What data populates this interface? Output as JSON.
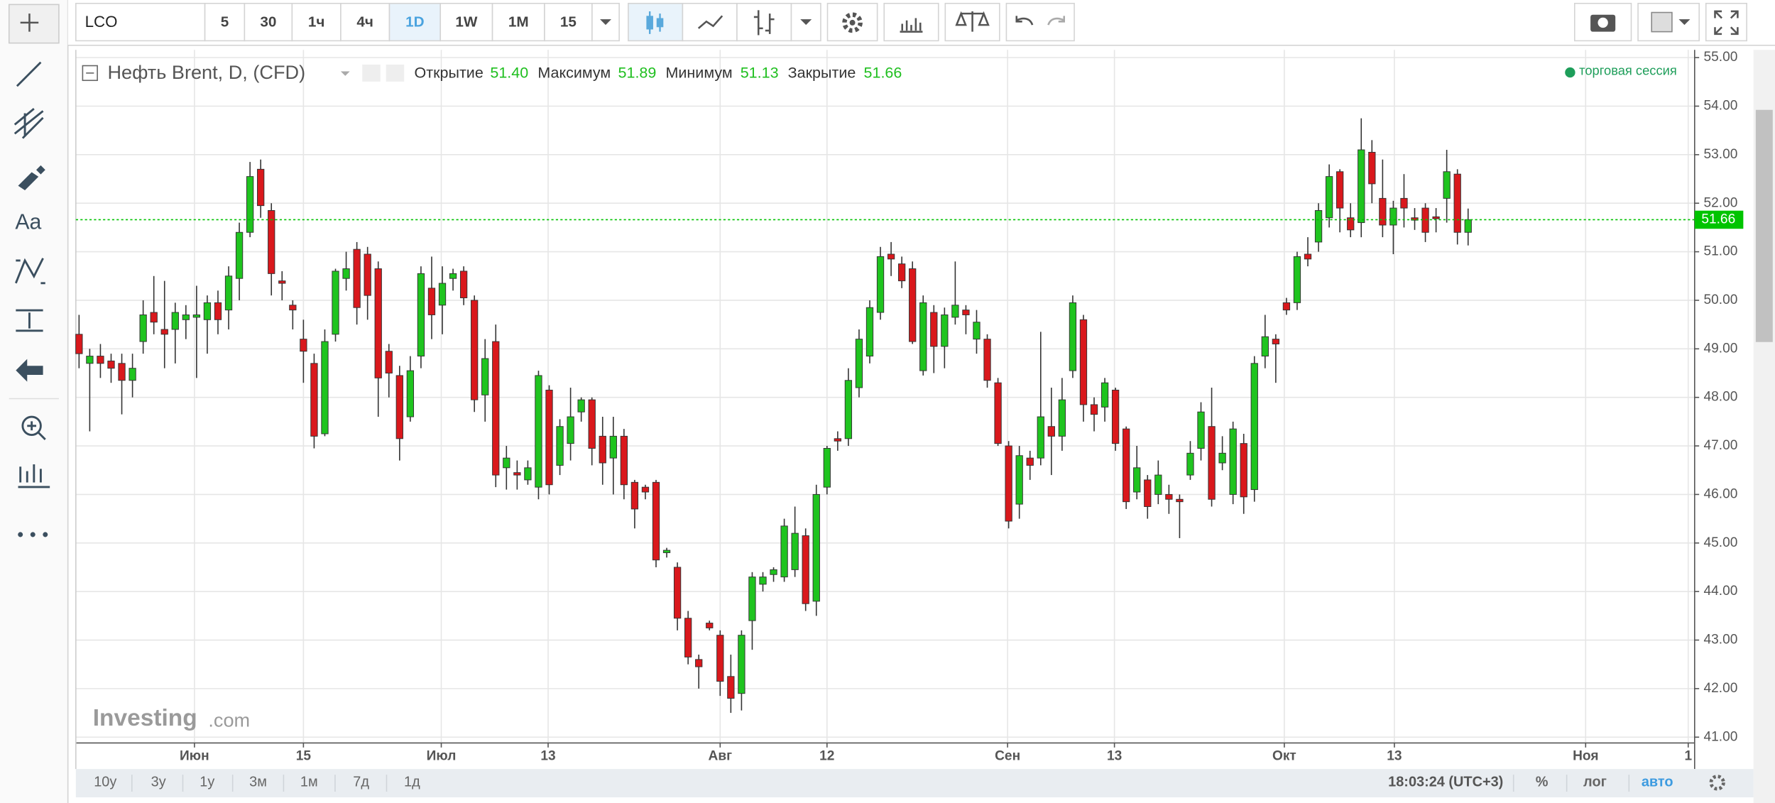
{
  "toolbar": {
    "symbol": "LCO",
    "intervals": [
      "5",
      "30",
      "1ч",
      "4ч",
      "1D",
      "1W",
      "1M",
      "15"
    ],
    "active_interval": 4
  },
  "left_panel": {
    "text_tool": "Aa"
  },
  "legend": {
    "title": "Нефть Brent, D, (CFD)",
    "fields": [
      {
        "label": "Открытие",
        "value": "51.40"
      },
      {
        "label": "Максимум",
        "value": "51.89"
      },
      {
        "label": "Минимум",
        "value": "51.13"
      },
      {
        "label": "Закрытие",
        "value": "51.66"
      }
    ],
    "session": "торговая сессия"
  },
  "watermark": {
    "brand": "Investing",
    "suffix": ".com"
  },
  "bottom_bar": {
    "ranges": [
      "10y",
      "3y",
      "1y",
      "3м",
      "1м",
      "7д",
      "1д"
    ],
    "time": "18:03:24 (UTC+3)",
    "options": [
      "%",
      "лог",
      "авто"
    ],
    "active_option": 2
  },
  "chart_data": {
    "type": "candlestick",
    "up_color": "#1fc41f",
    "down_color": "#d9181c",
    "grid": true,
    "open": [
      49.3,
      48.7,
      48.85,
      48.75,
      48.7,
      48.35,
      49.15,
      49.75,
      49.4,
      49.4,
      49.6,
      49.65,
      49.6,
      49.95,
      49.8,
      50.45,
      51.4,
      52.7,
      51.85,
      50.4,
      49.9,
      49.2,
      48.7,
      47.25,
      49.3,
      50.45,
      51.05,
      50.95,
      50.65,
      48.95,
      48.45,
      47.6,
      48.85,
      50.25,
      49.9,
      50.45,
      50.6,
      50.0,
      48.05,
      49.15,
      46.55,
      46.45,
      46.3,
      46.15,
      48.15,
      46.6,
      47.05,
      47.7,
      47.95,
      47.2,
      46.75,
      47.2,
      46.25,
      46.15,
      46.25,
      44.8,
      44.5,
      43.45,
      42.6,
      43.35,
      43.1,
      42.25,
      41.9,
      43.4,
      44.15,
      44.35,
      44.3,
      44.45,
      45.15,
      43.8,
      46.15,
      47.15,
      47.15,
      48.2,
      48.85,
      49.75,
      50.95,
      50.75,
      50.65,
      48.55,
      49.75,
      49.05,
      49.65,
      49.8,
      49.2,
      49.2,
      48.3,
      47.0,
      45.8,
      46.75,
      46.75,
      47.4,
      47.2,
      48.55,
      49.6,
      47.85,
      47.8,
      48.15,
      47.35,
      46.05,
      46.3,
      46.0,
      46.0,
      45.9,
      46.4,
      46.95,
      47.4,
      46.65,
      46.0,
      47.05,
      46.1,
      48.85,
      49.2,
      49.95,
      49.95,
      50.95,
      51.2,
      51.7,
      52.65,
      51.7,
      51.6,
      53.05,
      52.1,
      51.55,
      52.1,
      51.7,
      51.9,
      51.72,
      52.1,
      52.6,
      51.4
    ],
    "high": [
      49.7,
      49.0,
      49.1,
      48.9,
      48.9,
      48.9,
      50.0,
      50.5,
      50.4,
      49.95,
      49.9,
      50.3,
      50.1,
      50.2,
      50.7,
      51.6,
      52.85,
      52.9,
      52.0,
      50.6,
      50.0,
      49.6,
      48.9,
      49.4,
      50.65,
      51.0,
      51.2,
      51.1,
      50.8,
      49.1,
      48.65,
      48.85,
      50.7,
      50.9,
      50.7,
      50.65,
      50.7,
      50.1,
      49.2,
      49.5,
      47.0,
      46.7,
      46.7,
      48.55,
      48.25,
      47.55,
      48.2,
      48.0,
      48.0,
      47.6,
      47.6,
      47.35,
      46.3,
      46.2,
      46.3,
      44.9,
      44.6,
      43.6,
      42.7,
      43.4,
      43.2,
      42.7,
      43.2,
      44.4,
      44.4,
      44.5,
      45.5,
      45.75,
      45.3,
      46.2,
      47.0,
      47.3,
      48.6,
      49.4,
      50.0,
      51.1,
      51.2,
      50.9,
      50.8,
      50.1,
      49.9,
      49.85,
      50.8,
      49.9,
      49.8,
      49.3,
      48.4,
      47.1,
      47.0,
      46.9,
      49.35,
      48.2,
      48.4,
      50.1,
      49.7,
      48.0,
      48.4,
      48.2,
      47.4,
      47.0,
      46.4,
      46.7,
      46.2,
      46.0,
      47.1,
      47.9,
      48.2,
      47.2,
      47.5,
      47.25,
      48.85,
      49.7,
      49.3,
      50.05,
      51.0,
      51.3,
      52.0,
      52.8,
      52.7,
      52.0,
      53.75,
      53.3,
      52.9,
      52.05,
      52.6,
      51.9,
      52.0,
      51.9,
      53.1,
      52.7,
      51.89
    ],
    "low": [
      48.6,
      47.3,
      48.4,
      48.3,
      47.65,
      48.0,
      48.9,
      49.3,
      48.6,
      48.7,
      49.2,
      48.4,
      48.9,
      49.3,
      49.4,
      50.0,
      51.3,
      51.7,
      50.1,
      50.0,
      49.4,
      48.3,
      46.95,
      47.2,
      49.15,
      50.2,
      49.5,
      49.6,
      47.6,
      48.0,
      46.7,
      47.5,
      48.6,
      49.2,
      49.3,
      50.2,
      49.9,
      47.7,
      47.5,
      46.15,
      46.1,
      46.1,
      46.2,
      45.9,
      46.0,
      46.4,
      46.7,
      47.5,
      46.6,
      46.2,
      46.0,
      45.9,
      45.3,
      45.9,
      44.5,
      44.7,
      43.2,
      42.5,
      42.0,
      43.2,
      41.85,
      41.5,
      41.55,
      42.8,
      44.0,
      44.2,
      44.2,
      44.3,
      43.6,
      43.5,
      46.0,
      46.9,
      47.0,
      48.0,
      48.7,
      49.6,
      50.5,
      50.25,
      49.1,
      48.45,
      48.5,
      48.6,
      49.5,
      49.3,
      48.9,
      48.2,
      47.0,
      45.3,
      45.5,
      46.3,
      46.6,
      46.4,
      46.9,
      48.4,
      47.5,
      47.3,
      47.5,
      46.9,
      45.7,
      45.9,
      45.5,
      45.8,
      45.6,
      45.1,
      46.3,
      46.7,
      45.75,
      46.5,
      45.8,
      45.6,
      45.85,
      48.6,
      48.3,
      49.7,
      49.8,
      50.7,
      51.0,
      51.5,
      51.4,
      51.3,
      51.3,
      52.0,
      51.3,
      50.95,
      51.5,
      51.45,
      51.2,
      51.4,
      51.6,
      51.15,
      51.13
    ],
    "close": [
      48.9,
      48.85,
      48.7,
      48.6,
      48.35,
      48.6,
      49.7,
      49.55,
      49.3,
      49.75,
      49.7,
      49.7,
      49.95,
      49.6,
      50.5,
      51.4,
      52.55,
      51.95,
      50.55,
      50.35,
      49.8,
      48.95,
      47.2,
      49.15,
      50.6,
      50.65,
      49.85,
      50.1,
      48.4,
      48.5,
      47.15,
      48.55,
      50.55,
      49.7,
      50.35,
      50.55,
      50.05,
      47.95,
      48.8,
      46.4,
      46.75,
      46.4,
      46.55,
      48.45,
      46.2,
      47.4,
      47.6,
      47.95,
      46.95,
      46.65,
      47.2,
      46.2,
      45.7,
      46.05,
      44.65,
      44.85,
      43.45,
      42.65,
      42.45,
      43.25,
      42.15,
      41.8,
      43.1,
      44.3,
      44.3,
      44.45,
      45.35,
      45.2,
      43.75,
      46.0,
      46.95,
      47.1,
      48.35,
      49.2,
      49.85,
      50.9,
      50.85,
      50.4,
      49.15,
      49.95,
      49.05,
      49.7,
      49.9,
      49.7,
      49.55,
      48.35,
      47.05,
      45.45,
      46.8,
      46.6,
      47.6,
      47.2,
      47.95,
      49.95,
      47.85,
      47.65,
      48.3,
      47.05,
      45.85,
      46.55,
      45.75,
      46.4,
      45.9,
      45.85,
      46.85,
      47.7,
      45.9,
      46.85,
      47.35,
      45.95,
      48.7,
      49.25,
      49.1,
      49.8,
      50.9,
      50.85,
      51.85,
      52.55,
      51.9,
      51.45,
      53.1,
      52.4,
      51.55,
      51.9,
      51.9,
      51.65,
      51.4,
      51.68,
      52.65,
      51.4,
      51.66
    ],
    "xlim": [
      -0.3,
      151.2
    ],
    "xticks": [
      {
        "value": 10.8,
        "label": "Июн"
      },
      {
        "value": 21.0,
        "label": "15"
      },
      {
        "value": 33.9,
        "label": "Июл"
      },
      {
        "value": 43.9,
        "label": "13"
      },
      {
        "value": 60.0,
        "label": "Авг"
      },
      {
        "value": 70.0,
        "label": "12"
      },
      {
        "value": 86.9,
        "label": "Сен"
      },
      {
        "value": 96.9,
        "label": "13"
      },
      {
        "value": 112.8,
        "label": "Окт"
      },
      {
        "value": 123.1,
        "label": "13"
      },
      {
        "value": 141.0,
        "label": "Ноя"
      },
      {
        "value": 150.6,
        "label": "1"
      }
    ],
    "ylim": [
      40.88,
      55.16
    ],
    "yticks": [
      {
        "value": 41,
        "label": "41.00"
      },
      {
        "value": 42,
        "label": "42.00"
      },
      {
        "value": 43,
        "label": "43.00"
      },
      {
        "value": 44,
        "label": "44.00"
      },
      {
        "value": 45,
        "label": "45.00"
      },
      {
        "value": 46,
        "label": "46.00"
      },
      {
        "value": 47,
        "label": "47.00"
      },
      {
        "value": 48,
        "label": "48.00"
      },
      {
        "value": 49,
        "label": "49.00"
      },
      {
        "value": 50,
        "label": "50.00"
      },
      {
        "value": 51,
        "label": "51.00"
      },
      {
        "value": 52,
        "label": "52.00"
      },
      {
        "value": 53,
        "label": "53.00"
      },
      {
        "value": 54,
        "label": "54.00"
      },
      {
        "value": 55,
        "label": "55.00"
      }
    ],
    "last_price": {
      "value": 51.66,
      "label": "51.66"
    },
    "last_price_color": "#00c400"
  }
}
